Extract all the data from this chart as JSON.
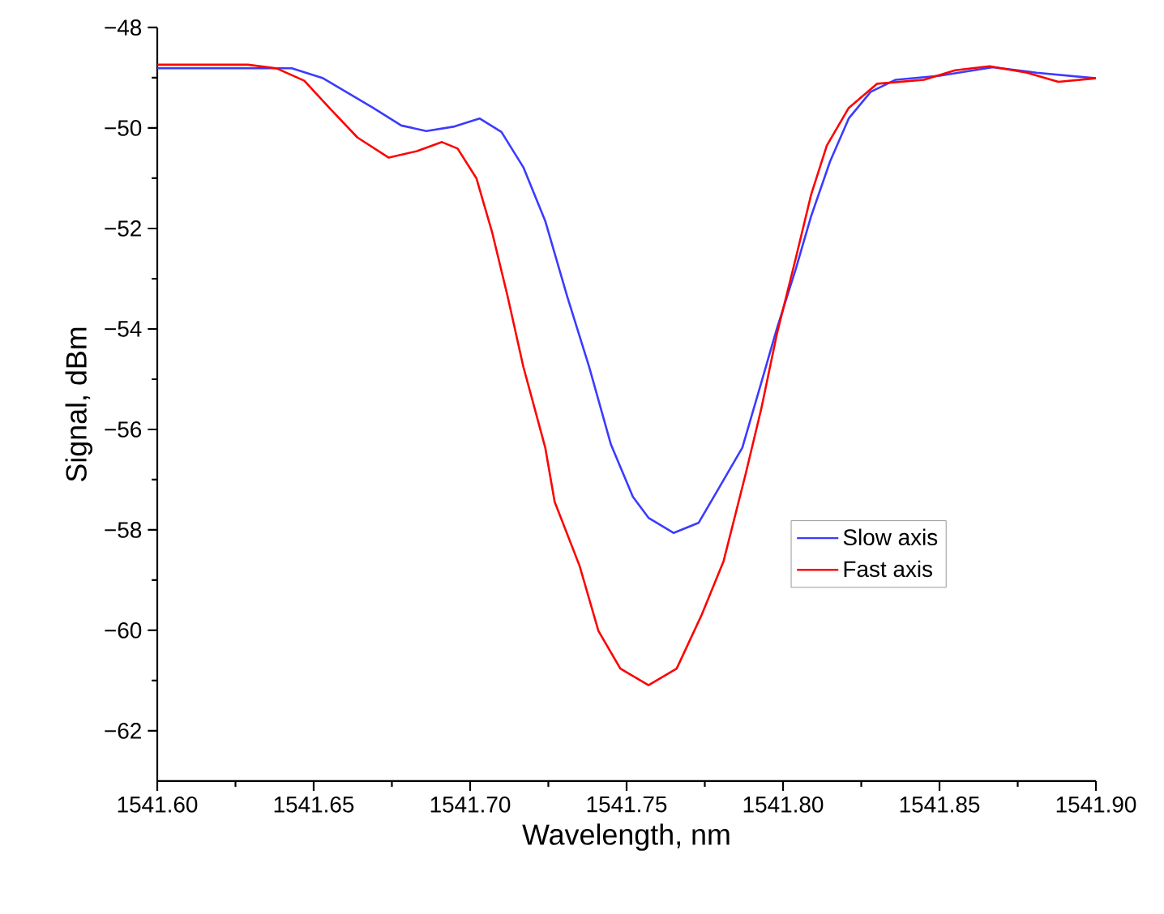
{
  "chart_data": {
    "type": "line",
    "xlabel": "Wavelength, nm",
    "ylabel": "Signal, dBm",
    "xlim": [
      1541.6,
      1541.9
    ],
    "ylim": [
      -63,
      -48
    ],
    "xticks": [
      {
        "value": 1541.6,
        "label": "1541.60"
      },
      {
        "value": 1541.65,
        "label": "1541.65"
      },
      {
        "value": 1541.7,
        "label": "1541.70"
      },
      {
        "value": 1541.75,
        "label": "1541.75"
      },
      {
        "value": 1541.8,
        "label": "1541.80"
      },
      {
        "value": 1541.85,
        "label": "1541.85"
      },
      {
        "value": 1541.9,
        "label": "1541.90"
      }
    ],
    "yticks": [
      {
        "value": -62,
        "label": "−62"
      },
      {
        "value": -60,
        "label": "−60"
      },
      {
        "value": -58,
        "label": "−58"
      },
      {
        "value": -56,
        "label": "−56"
      },
      {
        "value": -54,
        "label": "−54"
      },
      {
        "value": -52,
        "label": "−52"
      },
      {
        "value": -50,
        "label": "−50"
      },
      {
        "value": -48,
        "label": "−48"
      }
    ],
    "legend": "right",
    "grid": false,
    "marker": "none",
    "line_style": "solid",
    "series": [
      {
        "name": "Slow axis",
        "color": "#3b3bff",
        "x": [
          1541.6,
          1541.643,
          1541.653,
          1541.669,
          1541.678,
          1541.686,
          1541.695,
          1541.703,
          1541.71,
          1541.717,
          1541.724,
          1541.731,
          1541.738,
          1541.745,
          1541.752,
          1541.757,
          1541.765,
          1541.773,
          1541.779,
          1541.787,
          1541.793,
          1541.798,
          1541.804,
          1541.809,
          1541.815,
          1541.821,
          1541.828,
          1541.836,
          1541.85,
          1541.867,
          1541.881,
          1541.9
        ],
        "values": [
          -48.81,
          -48.81,
          -49.01,
          -49.6,
          -49.95,
          -50.06,
          -49.97,
          -49.81,
          -50.08,
          -50.78,
          -51.85,
          -53.35,
          -54.75,
          -56.3,
          -57.34,
          -57.76,
          -58.06,
          -57.86,
          -57.22,
          -56.36,
          -55.08,
          -54.0,
          -52.82,
          -51.75,
          -50.67,
          -49.81,
          -49.28,
          -49.04,
          -48.96,
          -48.79,
          -48.9,
          -49.01
        ]
      },
      {
        "name": "Fast axis",
        "color": "#ff0000",
        "x": [
          1541.6,
          1541.629,
          1541.638,
          1541.647,
          1541.655,
          1541.664,
          1541.674,
          1541.683,
          1541.691,
          1541.696,
          1541.702,
          1541.707,
          1541.712,
          1541.717,
          1541.724,
          1541.727,
          1541.735,
          1541.741,
          1541.748,
          1541.757,
          1541.766,
          1541.774,
          1541.781,
          1541.788,
          1541.793,
          1541.798,
          1541.804,
          1541.809,
          1541.814,
          1541.821,
          1541.83,
          1541.845,
          1541.855,
          1541.866,
          1541.878,
          1541.888,
          1541.9
        ],
        "values": [
          -48.74,
          -48.74,
          -48.81,
          -49.06,
          -49.6,
          -50.19,
          -50.59,
          -50.46,
          -50.28,
          -50.41,
          -51.0,
          -52.07,
          -53.36,
          -54.75,
          -56.36,
          -57.44,
          -58.72,
          -60.01,
          -60.76,
          -61.09,
          -60.76,
          -59.69,
          -58.62,
          -56.9,
          -55.6,
          -54.11,
          -52.61,
          -51.32,
          -50.35,
          -49.6,
          -49.12,
          -49.04,
          -48.85,
          -48.77,
          -48.9,
          -49.08,
          -49.01
        ]
      }
    ]
  }
}
